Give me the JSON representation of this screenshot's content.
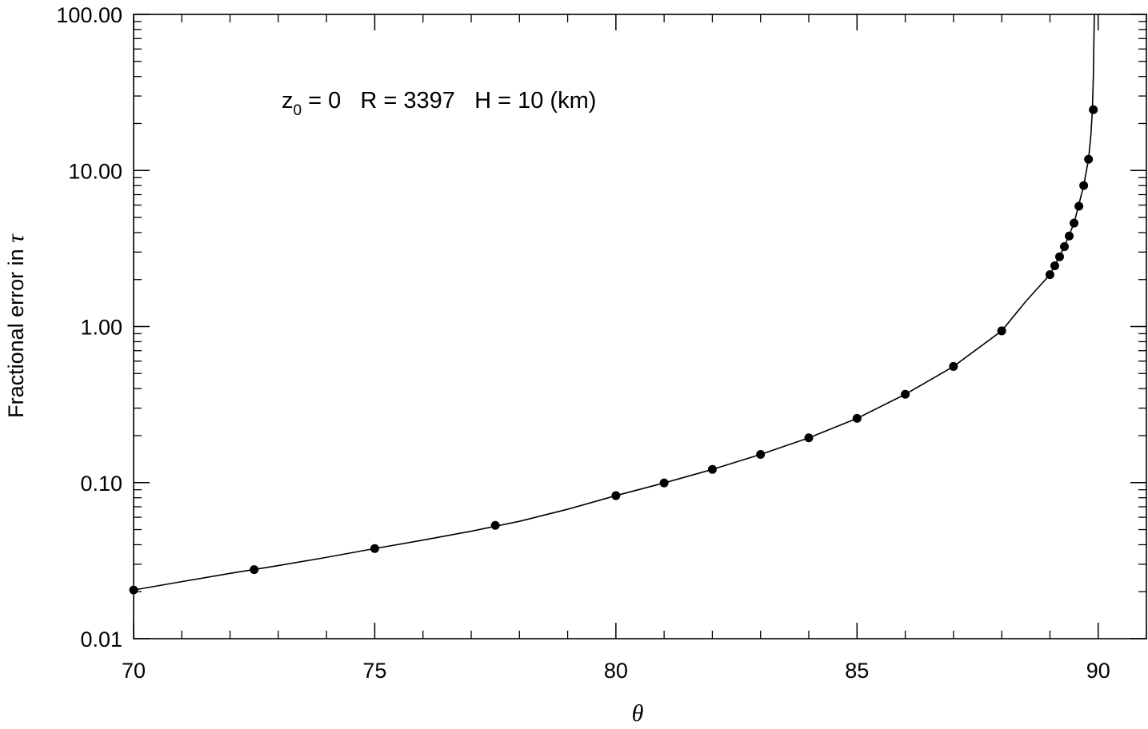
{
  "chart_data": {
    "type": "line",
    "xlabel": "θ",
    "ylabel": {
      "text": "Fractional error in ",
      "symbol": "τ"
    },
    "xlim": [
      70,
      91
    ],
    "ylim": [
      0.01,
      100
    ],
    "yscale": "log",
    "x_ticks": [
      70,
      75,
      80,
      85,
      90
    ],
    "x_tick_labels": [
      "70",
      "75",
      "80",
      "85",
      "90"
    ],
    "y_ticks": [
      0.01,
      0.1,
      1,
      10,
      100
    ],
    "y_tick_labels": [
      "0.01",
      "0.10",
      "1.00",
      "10.00",
      "100.00"
    ],
    "grid": false,
    "annotation": {
      "z_symbol": "z",
      "z_sub": "0",
      "z_rest": " = 0   R = 3397   H = 10 (km)"
    },
    "series": [
      {
        "kind": "curve",
        "x": [
          70,
          71,
          72,
          73,
          74,
          75,
          76,
          77,
          78,
          79,
          80,
          81,
          82,
          83,
          84,
          85,
          86,
          87,
          88,
          88.5,
          89,
          89.3,
          89.5,
          89.7,
          89.8,
          89.85,
          89.88,
          89.9,
          89.92
        ],
        "values": [
          0.0205,
          0.0232,
          0.0262,
          0.0294,
          0.0332,
          0.0378,
          0.0428,
          0.0488,
          0.0565,
          0.0675,
          0.0825,
          0.0995,
          0.1215,
          0.1515,
          0.1935,
          0.258,
          0.368,
          0.555,
          0.938,
          1.45,
          2.15,
          3.25,
          4.6,
          8.0,
          11.8,
          17.0,
          24.5,
          40.0,
          100.0
        ]
      },
      {
        "kind": "points",
        "x": [
          70,
          72.5,
          75,
          77.5,
          80,
          81,
          82,
          83,
          84,
          85,
          86,
          87,
          88,
          89,
          89.1,
          89.2,
          89.3,
          89.4,
          89.5,
          89.6,
          89.7,
          89.8,
          89.9
        ],
        "values": [
          0.0205,
          0.0277,
          0.0378,
          0.0532,
          0.0825,
          0.0995,
          0.1215,
          0.1515,
          0.1935,
          0.258,
          0.368,
          0.555,
          0.938,
          2.15,
          2.45,
          2.8,
          3.25,
          3.8,
          4.6,
          5.9,
          8.0,
          11.8,
          24.5
        ]
      }
    ]
  }
}
